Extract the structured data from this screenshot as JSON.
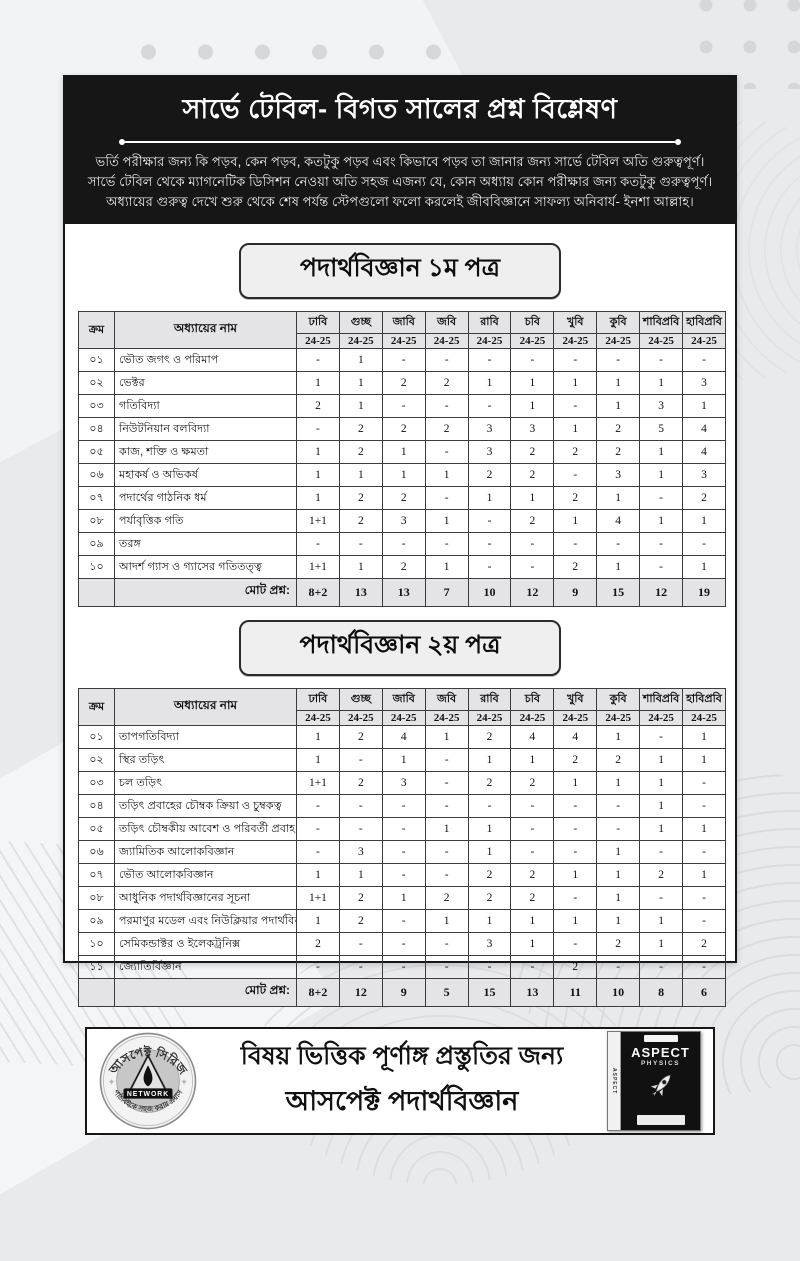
{
  "banner": {
    "title": "সার্ভে টেবিল- বিগত সালের প্রশ্ন বিশ্লেষণ",
    "description": "ভর্তি পরীক্ষার জন্য কি পড়ব, কেন পড়ব, কতটুকু পড়ব এবং কিভাবে পড়ব তা জানার জন্য সার্ভে টেবিল অতি গুরুত্বপূর্ণ। সার্ভে টেবিল থেকে ম্যাগনেটিক ডিসিশন নেওয়া অতি সহজ এজন্য যে, কোন অধ্যায় কোন পরীক্ষার জন্য কতটুকু গুরুত্বপূর্ণ। অধ্যায়ের গুরুত্ব দেখে শুরু থেকে শেষ পর্যন্ত স্টেপগুলো ফলো করলেই জীববিজ্ঞানে সাফল্য অনিবার্য- ইনশা আল্লাহ।"
  },
  "colors": {
    "page_background": "#e9eaec",
    "banner_background": "#161616",
    "table_header_background": "#e4e4e6",
    "card_background": "#ffffff"
  },
  "sections": [
    {
      "title": "পদার্থবিজ্ঞান ১ম পত্র",
      "table": {
        "serial_header": "ক্রম",
        "chapter_header": "অধ্যায়ের নাম",
        "universities": [
          "ঢাবি",
          "গুচ্ছ",
          "জাবি",
          "জবি",
          "রাবি",
          "চবি",
          "খুবি",
          "কুবি",
          "শাবিপ্রবি",
          "হাবিপ্রবি"
        ],
        "session": "24-25",
        "rows": [
          {
            "serial": "০১",
            "chapter": "ভৌত জগৎ ও পরিমাপ",
            "values": [
              "-",
              "1",
              "-",
              "-",
              "-",
              "-",
              "-",
              "-",
              "-",
              "-"
            ]
          },
          {
            "serial": "০২",
            "chapter": "ভেক্টর",
            "values": [
              "1",
              "1",
              "2",
              "2",
              "1",
              "1",
              "1",
              "1",
              "1",
              "3"
            ]
          },
          {
            "serial": "০৩",
            "chapter": "গতিবিদ্যা",
            "values": [
              "2",
              "1",
              "-",
              "-",
              "-",
              "1",
              "-",
              "1",
              "3",
              "1"
            ]
          },
          {
            "serial": "০৪",
            "chapter": "নিউটনিয়ান বলবিদ্যা",
            "values": [
              "-",
              "2",
              "2",
              "2",
              "3",
              "3",
              "1",
              "2",
              "5",
              "4"
            ]
          },
          {
            "serial": "০৫",
            "chapter": "কাজ, শক্তি ও ক্ষমতা",
            "values": [
              "1",
              "2",
              "1",
              "-",
              "3",
              "2",
              "2",
              "2",
              "1",
              "4"
            ]
          },
          {
            "serial": "০৬",
            "chapter": "মহাকর্ষ ও অভিকর্ষ",
            "values": [
              "1",
              "1",
              "1",
              "1",
              "2",
              "2",
              "-",
              "3",
              "1",
              "3"
            ]
          },
          {
            "serial": "০৭",
            "chapter": "পদার্থের গাঠনিক ধর্ম",
            "values": [
              "1",
              "2",
              "2",
              "-",
              "1",
              "1",
              "2",
              "1",
              "-",
              "2"
            ]
          },
          {
            "serial": "০৮",
            "chapter": "পর্যাবৃত্তিক গতি",
            "values": [
              "1+1",
              "2",
              "3",
              "1",
              "-",
              "2",
              "1",
              "4",
              "1",
              "1"
            ]
          },
          {
            "serial": "০৯",
            "chapter": "তরঙ্গ",
            "values": [
              "-",
              "-",
              "-",
              "-",
              "-",
              "-",
              "-",
              "-",
              "-",
              "-"
            ]
          },
          {
            "serial": "১০",
            "chapter": "আদর্শ গ্যাস ও গ্যাসের গতিতত্ত্ব",
            "values": [
              "1+1",
              "1",
              "2",
              "1",
              "-",
              "-",
              "2",
              "1",
              "-",
              "1"
            ]
          }
        ],
        "total_label": "মোট প্রশ্ন:",
        "totals": [
          "8+2",
          "13",
          "13",
          "7",
          "10",
          "12",
          "9",
          "15",
          "12",
          "19"
        ]
      }
    },
    {
      "title": "পদার্থবিজ্ঞান ২য় পত্র",
      "table": {
        "serial_header": "ক্রম",
        "chapter_header": "অধ্যায়ের নাম",
        "universities": [
          "ঢাবি",
          "গুচ্ছ",
          "জাবি",
          "জবি",
          "রাবি",
          "চবি",
          "খুবি",
          "কুবি",
          "শাবিপ্রবি",
          "হাবিপ্রবি"
        ],
        "session": "24-25",
        "rows": [
          {
            "serial": "০১",
            "chapter": "তাপগতিবিদ্যা",
            "values": [
              "1",
              "2",
              "4",
              "1",
              "2",
              "4",
              "4",
              "1",
              "-",
              "1"
            ]
          },
          {
            "serial": "০২",
            "chapter": "স্থির তড়িৎ",
            "values": [
              "1",
              "-",
              "1",
              "-",
              "1",
              "1",
              "2",
              "2",
              "1",
              "1"
            ]
          },
          {
            "serial": "০৩",
            "chapter": "চল তড়িৎ",
            "values": [
              "1+1",
              "2",
              "3",
              "-",
              "2",
              "2",
              "1",
              "1",
              "1",
              "-"
            ]
          },
          {
            "serial": "০৪",
            "chapter": "তড়িৎ প্রবাহের চৌম্বক ক্রিয়া ও চুম্বকত্ব",
            "values": [
              "-",
              "-",
              "-",
              "-",
              "-",
              "-",
              "-",
              "-",
              "1",
              "-"
            ]
          },
          {
            "serial": "০৫",
            "chapter": "তড়িৎ চৌম্বকীয় আবেশ ও পরিবর্তী প্রবাহ",
            "values": [
              "-",
              "-",
              "-",
              "1",
              "1",
              "-",
              "-",
              "-",
              "1",
              "1"
            ]
          },
          {
            "serial": "০৬",
            "chapter": "জ্যামিতিক আলোকবিজ্ঞান",
            "values": [
              "-",
              "3",
              "-",
              "-",
              "1",
              "-",
              "-",
              "1",
              "-",
              "-"
            ]
          },
          {
            "serial": "০৭",
            "chapter": "ভৌত আলোকবিজ্ঞান",
            "values": [
              "1",
              "1",
              "-",
              "-",
              "2",
              "2",
              "1",
              "1",
              "2",
              "1"
            ]
          },
          {
            "serial": "০৮",
            "chapter": "আধুনিক পদার্থবিজ্ঞানের সূচনা",
            "values": [
              "1+1",
              "2",
              "1",
              "2",
              "2",
              "2",
              "-",
              "1",
              "-",
              "-"
            ]
          },
          {
            "serial": "০৯",
            "chapter": "পরমাণুর মডেল এবং নিউক্লিয়ার পদার্থবিজ্ঞান",
            "values": [
              "1",
              "2",
              "-",
              "1",
              "1",
              "1",
              "1",
              "1",
              "1",
              "-"
            ]
          },
          {
            "serial": "১০",
            "chapter": "সেমিকন্ডাক্টর ও ইলেকট্রনিক্স",
            "values": [
              "2",
              "-",
              "-",
              "-",
              "3",
              "1",
              "-",
              "2",
              "1",
              "2"
            ]
          },
          {
            "serial": "১১",
            "chapter": "জ্যোতির্বিজ্ঞান",
            "values": [
              "-",
              "-",
              "-",
              "-",
              "-",
              "-",
              "2",
              "-",
              "-",
              "-"
            ]
          }
        ],
        "total_label": "মোট প্রশ্ন:",
        "totals": [
          "8+2",
          "12",
          "9",
          "5",
          "15",
          "13",
          "11",
          "10",
          "8",
          "6"
        ]
      }
    }
  ],
  "footer": {
    "line1": "বিষয় ভিত্তিক পূর্ণাঙ্গ প্রস্তুতির জন্য",
    "line2": "আসপেক্ট পদার্থবিজ্ঞান",
    "logo": {
      "arc_top": "আসপেক্ট সিরিজ",
      "ribbon": "NETWORK",
      "arc_bottom": "পাঠ্যবইকে সহজ করার প্রয়াস"
    },
    "book": {
      "title": "ASPECT",
      "subtitle": "PHYSICS"
    }
  }
}
